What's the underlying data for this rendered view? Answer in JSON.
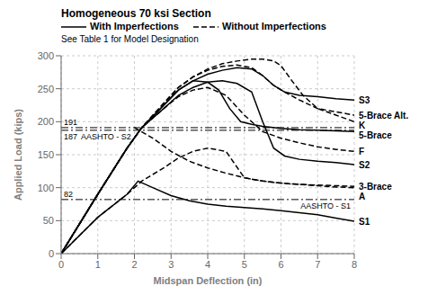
{
  "chart_data": {
    "type": "line",
    "title": "Homogeneous 70 ksi Section",
    "xlabel": "Midspan Deflection (in)",
    "ylabel": "Applied Load (kips)",
    "xlim": [
      0,
      8
    ],
    "ylim": [
      0,
      300
    ],
    "xticks": [
      0,
      1,
      2,
      3,
      4,
      5,
      6,
      7,
      8
    ],
    "yticks": [
      0,
      50,
      100,
      150,
      200,
      250,
      300
    ],
    "grid": true,
    "legend": "top",
    "color": "#000000",
    "line_styles": [
      {
        "line_style": "solid",
        "label": "With Imperfections"
      },
      {
        "line_style": "dashed",
        "label": "Without Imperfections"
      }
    ],
    "note": "See Table 1 for Model Designation",
    "hlines": [
      {
        "value": 82,
        "name": "AASHTO - S1"
      },
      {
        "value": 191
      },
      {
        "value": 187,
        "name": "AASHTO - S2"
      }
    ],
    "series": [
      {
        "name": "S1",
        "line_style": "solid",
        "x": [
          0,
          1.0,
          1.8,
          2.1,
          2.5,
          3.0,
          3.5,
          4.0,
          4.5,
          5.0,
          5.5,
          6.0,
          6.5,
          7.0,
          7.5,
          8.0
        ],
        "values": [
          0,
          55,
          90,
          110,
          100,
          88,
          80,
          75,
          72,
          70,
          68,
          65,
          62,
          59,
          54,
          49
        ]
      },
      {
        "name": "S2",
        "line_style": "solid",
        "x": [
          0,
          1.0,
          1.8,
          2.2,
          2.8,
          3.2,
          3.6,
          4.0,
          4.4,
          4.8,
          5.2,
          5.5,
          5.8,
          6.1,
          6.5,
          7.0,
          7.5,
          8.0
        ],
        "values": [
          0,
          90,
          160,
          191,
          220,
          240,
          252,
          260,
          262,
          258,
          245,
          200,
          160,
          148,
          143,
          140,
          138,
          135
        ]
      },
      {
        "name": "S3",
        "line_style": "solid",
        "x": [
          0,
          1.0,
          1.8,
          2.2,
          2.8,
          3.2,
          3.6,
          4.0,
          4.4,
          4.8,
          5.2,
          5.5,
          5.8,
          6.1,
          6.5,
          7.0,
          7.5,
          8.0
        ],
        "values": [
          0,
          90,
          160,
          191,
          225,
          248,
          262,
          272,
          278,
          282,
          280,
          270,
          255,
          245,
          240,
          238,
          235,
          233
        ]
      },
      {
        "name": "K",
        "line_style": "dashed",
        "x": [
          0,
          1.0,
          1.8,
          2.2,
          2.8,
          3.2,
          3.6,
          4.0,
          4.4,
          4.8,
          5.2,
          5.5,
          5.8,
          6.0,
          6.3,
          6.6,
          7.0,
          7.5,
          8.0
        ],
        "values": [
          0,
          90,
          160,
          191,
          228,
          252,
          268,
          280,
          288,
          292,
          295,
          295,
          292,
          285,
          262,
          240,
          220,
          210,
          200
        ]
      },
      {
        "name": "5-Brace",
        "line_style": "solid",
        "x": [
          0,
          1.0,
          1.8,
          2.2,
          2.8,
          3.2,
          3.6,
          4.0,
          4.3,
          4.6,
          4.9,
          5.2,
          5.5,
          6.0,
          6.5,
          7.0,
          7.5,
          8.0
        ],
        "values": [
          0,
          90,
          160,
          191,
          225,
          248,
          262,
          260,
          248,
          220,
          200,
          196,
          193,
          190,
          188,
          187,
          186,
          185
        ]
      },
      {
        "name": "5-Brace Alt.",
        "line_style": "dashed",
        "x": [
          0,
          1.0,
          1.8,
          2.2,
          2.8,
          3.2,
          3.6,
          4.0,
          4.4,
          4.8,
          5.2,
          5.5,
          5.8,
          6.1,
          6.5,
          7.0,
          7.5,
          8.0
        ],
        "values": [
          0,
          90,
          160,
          191,
          228,
          252,
          268,
          278,
          284,
          286,
          282,
          270,
          255,
          245,
          233,
          220,
          215,
          210
        ]
      },
      {
        "name": "3-Brace",
        "line_style": "dashed",
        "x": [
          0,
          1.0,
          1.8,
          2.2,
          2.8,
          3.2,
          3.6,
          4.0,
          4.5,
          5.0,
          5.5,
          5.8,
          6.2,
          6.5,
          7.0,
          7.5,
          8.0
        ],
        "values": [
          0,
          55,
          90,
          110,
          130,
          145,
          155,
          160,
          155,
          115,
          110,
          108,
          106,
          105,
          104,
          103,
          102
        ]
      },
      {
        "name": "F",
        "line_style": "dashed",
        "x": [
          0,
          1.0,
          1.8,
          2.2,
          2.8,
          3.2,
          3.6,
          4.0,
          4.5,
          5.0,
          5.5,
          6.0,
          6.5,
          7.0,
          7.5,
          8.0
        ],
        "values": [
          0,
          90,
          160,
          191,
          220,
          238,
          248,
          252,
          240,
          210,
          185,
          175,
          168,
          162,
          158,
          155
        ]
      },
      {
        "name": "A",
        "line_style": "dashed",
        "x": [
          2.0,
          2.5,
          3.0,
          3.5,
          4.0,
          4.5,
          5.0,
          5.5,
          6.0,
          6.5,
          7.0,
          7.5,
          8.0
        ],
        "values": [
          191,
          175,
          155,
          140,
          130,
          122,
          115,
          110,
          107,
          105,
          103,
          101,
          100
        ]
      }
    ]
  }
}
